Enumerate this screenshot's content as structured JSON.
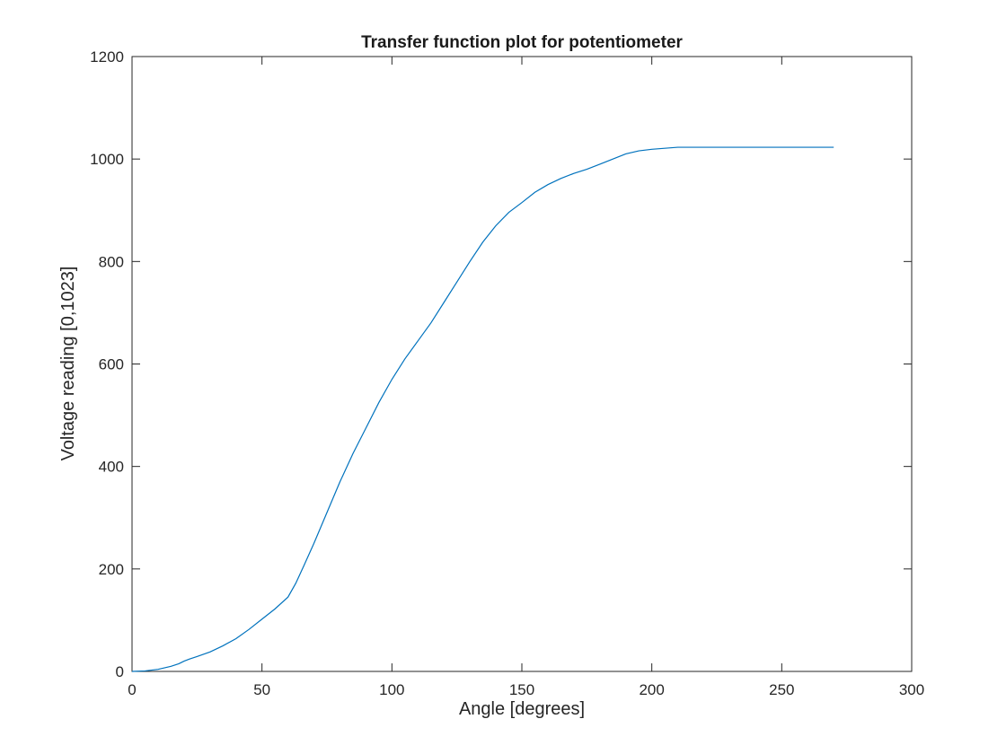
{
  "chart_data": {
    "type": "line",
    "title": "Transfer function plot for potentiometer",
    "xlabel": "Angle [degrees]",
    "ylabel": "Voltage reading [0,1023]",
    "xlim": [
      0,
      300
    ],
    "ylim": [
      0,
      1200
    ],
    "xticks": [
      0,
      50,
      100,
      150,
      200,
      250,
      300
    ],
    "yticks": [
      0,
      200,
      400,
      600,
      800,
      1000,
      1200
    ],
    "xtick_labels": [
      "0",
      "50",
      "100",
      "150",
      "200",
      "250",
      "300"
    ],
    "ytick_labels": [
      "0",
      "200",
      "400",
      "600",
      "800",
      "1000",
      "1200"
    ],
    "grid": false,
    "series": [
      {
        "color": "#0072bd",
        "x": [
          0,
          5,
          10,
          15,
          18,
          20,
          22,
          25,
          30,
          35,
          40,
          45,
          50,
          55,
          60,
          63,
          66,
          70,
          75,
          80,
          85,
          90,
          95,
          100,
          105,
          110,
          115,
          120,
          125,
          130,
          135,
          140,
          145,
          150,
          155,
          160,
          165,
          170,
          175,
          180,
          185,
          190,
          195,
          200,
          205,
          210,
          215,
          220,
          230,
          240,
          250,
          260,
          270
        ],
        "y": [
          0,
          1,
          4,
          10,
          15,
          20,
          24,
          29,
          38,
          50,
          64,
          82,
          102,
          122,
          145,
          172,
          205,
          250,
          310,
          370,
          425,
          475,
          525,
          570,
          610,
          645,
          680,
          720,
          760,
          800,
          838,
          870,
          896,
          915,
          935,
          950,
          962,
          972,
          980,
          990,
          1000,
          1010,
          1016,
          1019,
          1021,
          1023,
          1023,
          1023,
          1023,
          1023,
          1023,
          1023,
          1023
        ]
      }
    ]
  }
}
